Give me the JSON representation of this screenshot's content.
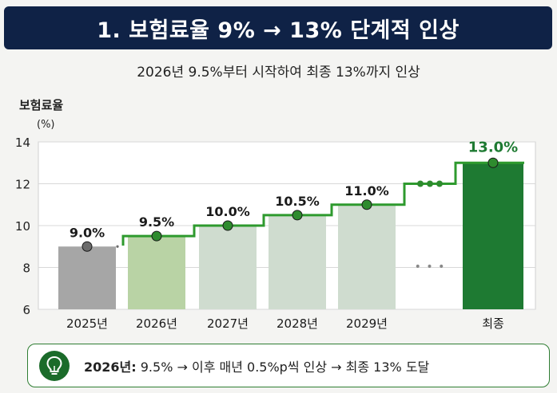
{
  "header": {
    "title": "1. 보험료율 9% → 13% 단계적 인상"
  },
  "subtitle": "2026년 9.5%부터 시작하여 최종 13%까지 인상",
  "chart_data": {
    "type": "bar",
    "ylabel": "보험료율",
    "yunit": "(%)",
    "ylim": [
      6,
      14
    ],
    "yticks": [
      6,
      8,
      10,
      12,
      14
    ],
    "grid": true,
    "categories": [
      "2025년",
      "2026년",
      "2027년",
      "2028년",
      "2029년",
      "",
      "최종"
    ],
    "values": [
      9.0,
      9.5,
      10.0,
      10.5,
      11.0,
      null,
      13.0
    ],
    "data_labels": [
      "9.0%",
      "9.5%",
      "10.0%",
      "10.5%",
      "11.0%",
      "",
      "13.0%"
    ],
    "ellipsis": "• • •",
    "colors": {
      "bar_2025": "#a6a6a6",
      "bar_2026": "#b9d3a5",
      "bar_mid": "#cfdccf",
      "bar_final": "#1e7a32",
      "step_line": "#2e9a2e",
      "marker": "#2e8b2e",
      "marker_2025": "#6b6b6b",
      "final_label": "#1e7a32"
    }
  },
  "tip": {
    "icon": "lightbulb-icon",
    "prefix": "2026년:",
    "text": " 9.5%  → 이후 매년 0.5%p씩 인상  → 최종 13% 도달"
  }
}
